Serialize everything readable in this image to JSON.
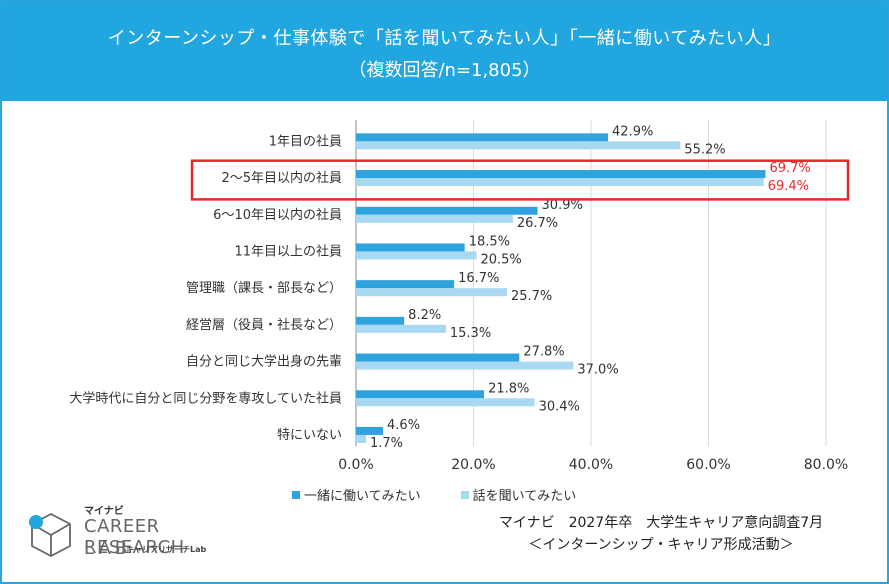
{
  "header": {
    "title_line1": "インターンシップ・仕事体験で「話を聞いてみたい人」「一緒に働いてみたい人」",
    "title_line2": "（複数回答/n=1,805）"
  },
  "colors": {
    "header_bg": "#22a6df",
    "series_work": "#2fa3dd",
    "series_talk": "#a9d8f2",
    "highlight": "#e8282b"
  },
  "chart_data": {
    "type": "bar",
    "orientation": "horizontal",
    "categories": [
      "1年目の社員",
      "2～5年目以内の社員",
      "6～10年目以内の社員",
      "11年目以上の社員",
      "管理職（課長・部長など）",
      "経営層（役員・社長など）",
      "自分と同じ大学出身の先輩",
      "大学時代に自分と同じ分野を専攻していた社員",
      "特にいない"
    ],
    "series": [
      {
        "name": "一緒に働いてみたい",
        "values": [
          42.9,
          69.7,
          30.9,
          18.5,
          16.7,
          8.2,
          27.8,
          21.8,
          4.6
        ]
      },
      {
        "name": "話を聞いてみたい",
        "values": [
          55.2,
          69.4,
          26.7,
          20.5,
          25.7,
          15.3,
          37.0,
          30.4,
          1.7
        ]
      }
    ],
    "xlim": [
      0,
      80
    ],
    "xticks": [
      "0.0%",
      "20.0%",
      "40.0%",
      "60.0%",
      "80.0%"
    ],
    "highlighted_category_index": 1,
    "grid": "vertical",
    "legend_position": "bottom"
  },
  "legend": {
    "work_label": "一緒に働いてみたい",
    "talk_label": "話を聞いてみたい"
  },
  "source": {
    "line1": "マイナビ　2027年卒　大学生キャリア意向調査7月",
    "line2": "＜インターンシップ・キャリア形成活動＞"
  },
  "logo": {
    "brand": "マイナビ",
    "line1": "CAREER RESEARCH",
    "line2": "LAB",
    "sub": "キャリアリサーチLab"
  }
}
